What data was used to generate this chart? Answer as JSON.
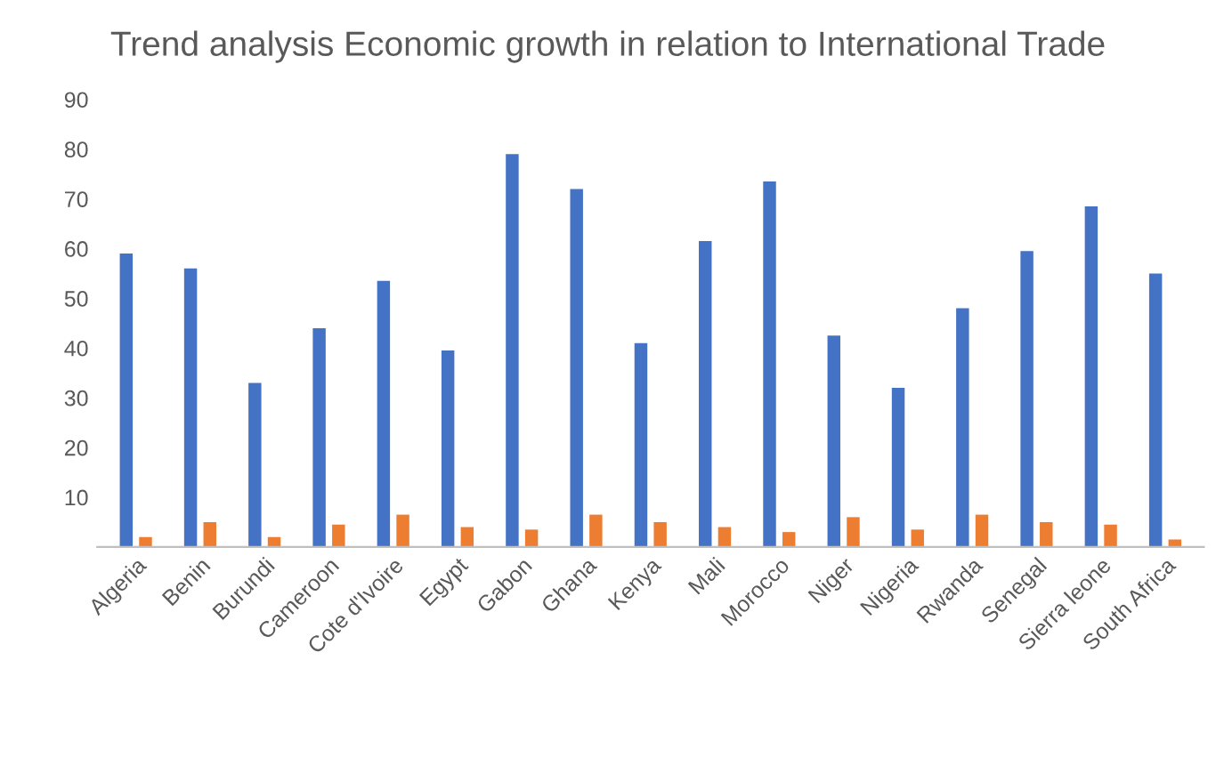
{
  "chart_data": {
    "type": "bar",
    "title": "Trend analysis Economic growth in relation to International Trade",
    "categories": [
      "Algeria",
      "Benin",
      "Burundi",
      "Cameroon",
      "Cote d'Ivoire",
      "Egypt",
      "Gabon",
      "Ghana",
      "Kenya",
      "Mali",
      "Morocco",
      "Niger",
      "Nigeria",
      "Rwanda",
      "Senegal",
      "Sierra leone",
      "South Africa"
    ],
    "series": [
      {
        "color": "#4472c4",
        "values": [
          59,
          56,
          33,
          44,
          53.5,
          39.5,
          79,
          72,
          41,
          61.5,
          73.5,
          42.5,
          32,
          48,
          59.5,
          68.5,
          55
        ]
      },
      {
        "color": "#ed7d31",
        "values": [
          2,
          5,
          2,
          4.5,
          6.5,
          4,
          3.5,
          6.5,
          5,
          4,
          3,
          6,
          3.5,
          6.5,
          5,
          4.5,
          1.5
        ]
      }
    ],
    "ylim": [
      0,
      90
    ],
    "yticks": [
      10,
      20,
      30,
      40,
      50,
      60,
      70,
      80,
      90
    ],
    "grid": false,
    "legend": false
  }
}
